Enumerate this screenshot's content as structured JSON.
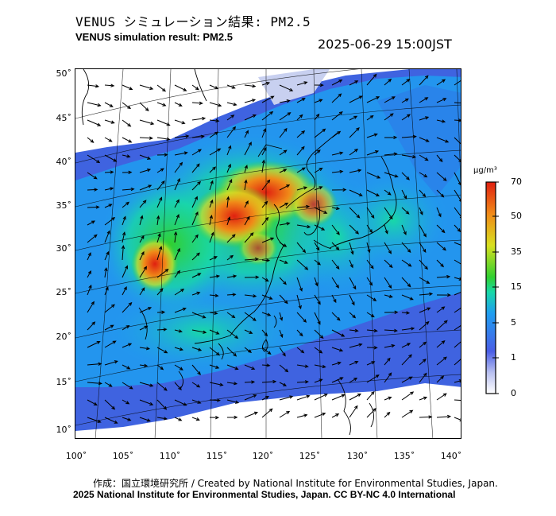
{
  "title_jp": "VENUS シミュレーション結果: PM2.5",
  "title_en": "VENUS simulation result: PM2.5",
  "datetime": "2025-06-29 15:00JST",
  "lat_labels": [
    "50˚",
    "45˚",
    "40˚",
    "35˚",
    "30˚",
    "25˚",
    "20˚",
    "15˚",
    "10˚"
  ],
  "lon_labels": [
    "100˚",
    "105˚",
    "110˚",
    "115˚",
    "120˚",
    "125˚",
    "130˚",
    "135˚",
    "140˚"
  ],
  "colorbar": {
    "unit": "µg/m³",
    "ticks": [
      "70",
      "50",
      "35",
      "15",
      "5",
      "1",
      "0"
    ],
    "colors": [
      "#e8e8f8",
      "#4a5ee6",
      "#1f9ef0",
      "#18d8a8",
      "#30d030",
      "#d8e020",
      "#f08a18",
      "#e02010"
    ]
  },
  "credit_line1": "作成：国立環境研究所 / Created by National Institute for Environmental Studies, Japan.",
  "credit_line2": "2025 National Institute for Environmental Studies, Japan. CC BY-NC 4.0 International"
}
